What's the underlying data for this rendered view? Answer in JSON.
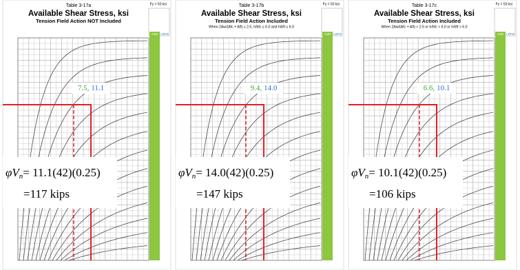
{
  "panels": [
    {
      "table": "Table 3-17a",
      "title": "Available Shear Stress, ksi",
      "subtitle": "Tension Field Action NOT Included",
      "condition": "",
      "fy": "Fy = 50 ksi",
      "column_headers": [
        "ASD",
        "LRFD"
      ],
      "annotation": {
        "asd": "7.5,",
        "lrfd": "11.1"
      },
      "formula": {
        "lhs": "φV",
        "sub": "n",
        "rhs": "= 11.1(42)(0.25)",
        "result": "=117 kips"
      }
    },
    {
      "table": "Table 3-17b",
      "title": "Available Shear Stress, ksi",
      "subtitle": "Tension Field Action Included",
      "condition": "When 2Aw/(Afc + Aft) ≤ 2.5, h/bfc ≤ 6.0 and h/bft ≤ 6.0",
      "fy": "Fy = 50 ksi",
      "column_headers": [
        "ASD",
        "LRFD"
      ],
      "annotation": {
        "asd": "9.4,",
        "lrfd": "14.0"
      },
      "formula": {
        "lhs": "φV",
        "sub": "n",
        "rhs": "= 14.0(42)(0.25)",
        "result": "=147 kips"
      }
    },
    {
      "table": "Table 3-17c",
      "title": "Available Shear Stress, ksi",
      "subtitle": "Tension Field Action Included",
      "condition": "When 2Aw/(Afc + Aft) > 2.5 or h/bfc > 6.0 or h/bft > 6.0",
      "fy": "Fy = 50 ksi",
      "column_headers": [
        "ASD",
        "LRFD"
      ],
      "annotation": {
        "asd": "6.6,",
        "lrfd": "10.1"
      },
      "formula": {
        "lhs": "φV",
        "sub": "n",
        "rhs": "= 10.1(42)(0.25)",
        "result": "=106 kips"
      }
    }
  ]
}
